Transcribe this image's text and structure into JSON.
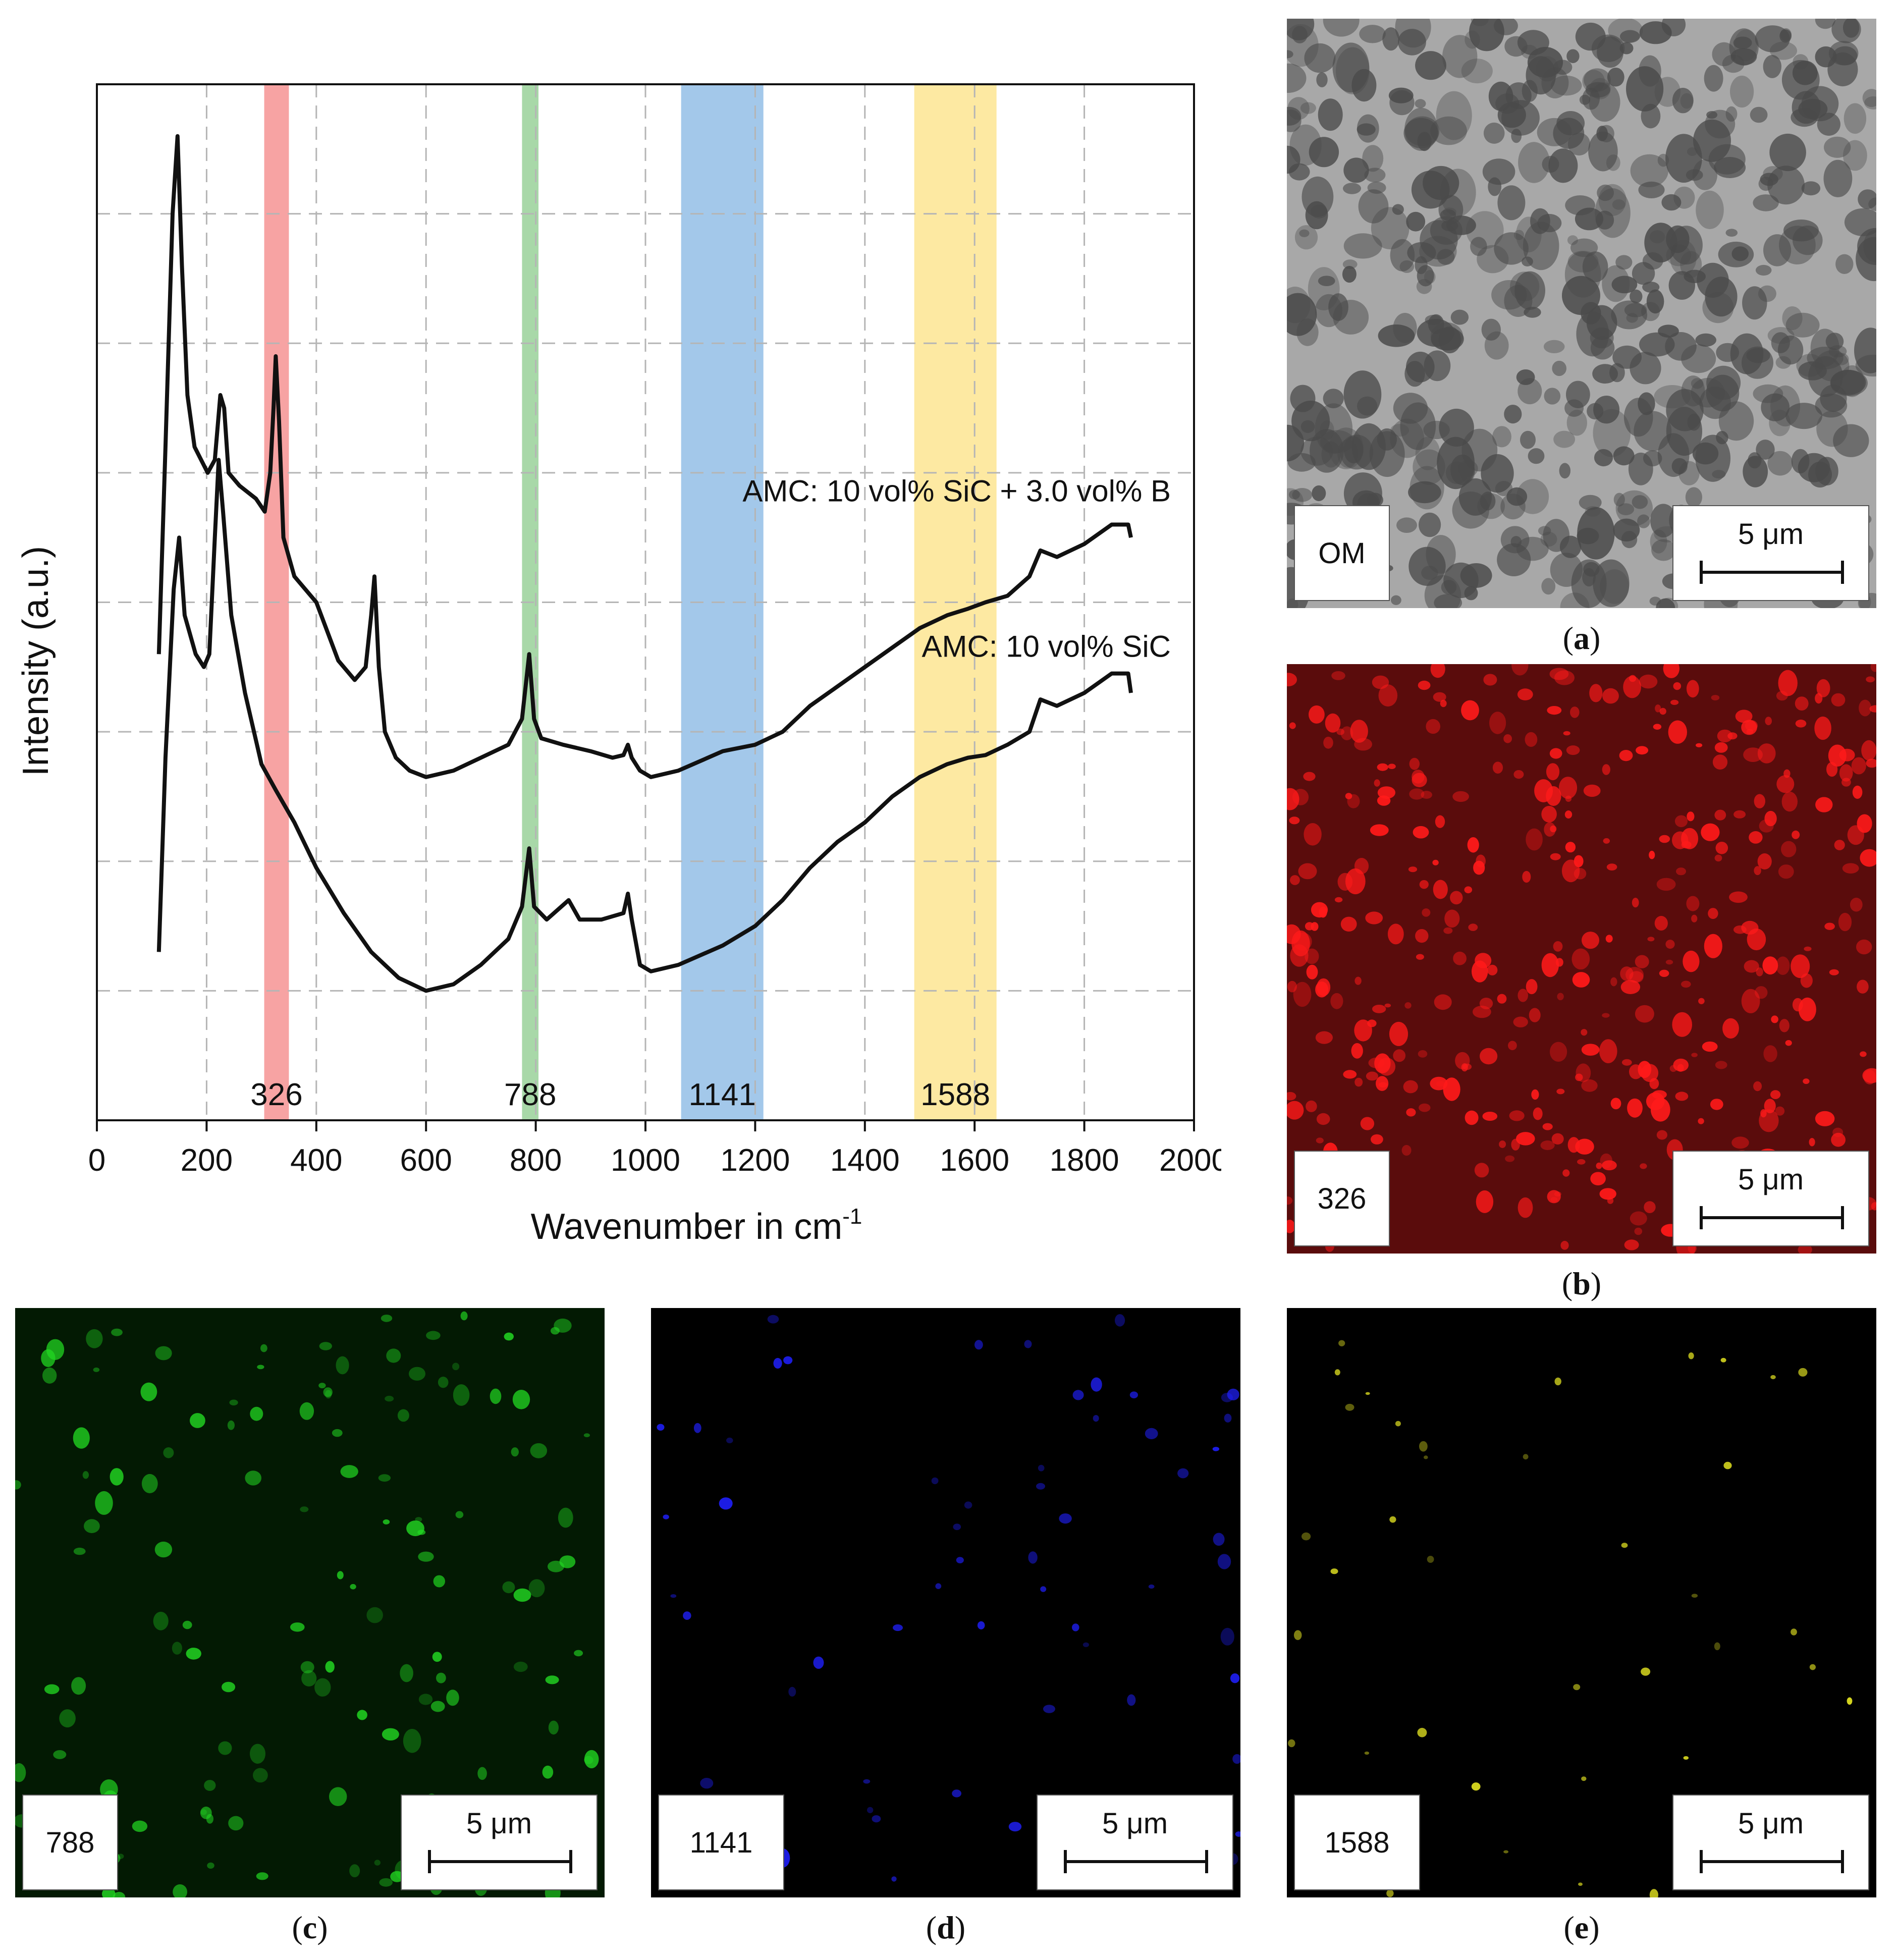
{
  "chart_data": {
    "type": "line",
    "xlabel": "Wavenumber in cm",
    "xlabel_sup": "-1",
    "ylabel": "Intensity (a.u.)",
    "xlim": [
      0,
      2000
    ],
    "xticks": [
      "0",
      "200",
      "400",
      "600",
      "800",
      "1000",
      "1200",
      "1400",
      "1600",
      "1800",
      "2000"
    ],
    "grid": true,
    "y_ticks_labeled": false,
    "bands": [
      {
        "label": "326",
        "from": 305,
        "to": 350,
        "color": "#f7a3a3"
      },
      {
        "label": "788",
        "from": 775,
        "to": 805,
        "color": "#a8d8a8"
      },
      {
        "label": "1141",
        "from": 1065,
        "to": 1215,
        "color": "#a3c8ea"
      },
      {
        "label": "1588",
        "from": 1490,
        "to": 1640,
        "color": "#fde9a2"
      }
    ],
    "series": [
      {
        "name": "AMC: 10 vol% SiC + 3.0 vol% B",
        "points": [
          [
            113,
            3.6
          ],
          [
            125,
            5.2
          ],
          [
            138,
            7.0
          ],
          [
            147,
            7.6
          ],
          [
            155,
            6.6
          ],
          [
            165,
            5.6
          ],
          [
            178,
            5.2
          ],
          [
            190,
            5.1
          ],
          [
            202,
            5.0
          ],
          [
            215,
            5.1
          ],
          [
            225,
            5.6
          ],
          [
            232,
            5.5
          ],
          [
            240,
            5.0
          ],
          [
            260,
            4.9
          ],
          [
            290,
            4.8
          ],
          [
            306,
            4.7
          ],
          [
            316,
            5.0
          ],
          [
            322,
            5.5
          ],
          [
            326,
            5.9
          ],
          [
            332,
            5.4
          ],
          [
            340,
            4.5
          ],
          [
            360,
            4.2
          ],
          [
            400,
            4.0
          ],
          [
            440,
            3.55
          ],
          [
            470,
            3.4
          ],
          [
            490,
            3.5
          ],
          [
            500,
            3.9
          ],
          [
            506,
            4.2
          ],
          [
            514,
            3.5
          ],
          [
            525,
            3.0
          ],
          [
            545,
            2.8
          ],
          [
            570,
            2.7
          ],
          [
            600,
            2.65
          ],
          [
            650,
            2.7
          ],
          [
            700,
            2.8
          ],
          [
            750,
            2.9
          ],
          [
            775,
            3.1
          ],
          [
            788,
            3.6
          ],
          [
            797,
            3.1
          ],
          [
            810,
            2.95
          ],
          [
            850,
            2.9
          ],
          [
            900,
            2.85
          ],
          [
            940,
            2.8
          ],
          [
            960,
            2.82
          ],
          [
            968,
            2.9
          ],
          [
            975,
            2.8
          ],
          [
            990,
            2.7
          ],
          [
            1010,
            2.65
          ],
          [
            1060,
            2.7
          ],
          [
            1141,
            2.85
          ],
          [
            1200,
            2.9
          ],
          [
            1250,
            3.0
          ],
          [
            1300,
            3.2
          ],
          [
            1350,
            3.35
          ],
          [
            1400,
            3.5
          ],
          [
            1450,
            3.65
          ],
          [
            1500,
            3.8
          ],
          [
            1550,
            3.9
          ],
          [
            1588,
            3.95
          ],
          [
            1620,
            4.0
          ],
          [
            1660,
            4.05
          ],
          [
            1700,
            4.2
          ],
          [
            1720,
            4.4
          ],
          [
            1750,
            4.35
          ],
          [
            1800,
            4.45
          ],
          [
            1850,
            4.6
          ],
          [
            1880,
            4.6
          ],
          [
            1885,
            4.5
          ]
        ]
      },
      {
        "name": "AMC: 10 vol% SiC",
        "points": [
          [
            113,
            1.3
          ],
          [
            125,
            2.8
          ],
          [
            140,
            4.1
          ],
          [
            150,
            4.5
          ],
          [
            160,
            3.9
          ],
          [
            180,
            3.6
          ],
          [
            195,
            3.5
          ],
          [
            205,
            3.6
          ],
          [
            215,
            4.5
          ],
          [
            222,
            5.1
          ],
          [
            230,
            4.7
          ],
          [
            245,
            3.9
          ],
          [
            270,
            3.3
          ],
          [
            300,
            2.75
          ],
          [
            326,
            2.55
          ],
          [
            360,
            2.3
          ],
          [
            400,
            1.95
          ],
          [
            450,
            1.6
          ],
          [
            500,
            1.3
          ],
          [
            550,
            1.1
          ],
          [
            600,
            1.0
          ],
          [
            650,
            1.05
          ],
          [
            700,
            1.2
          ],
          [
            750,
            1.4
          ],
          [
            775,
            1.65
          ],
          [
            788,
            2.1
          ],
          [
            797,
            1.65
          ],
          [
            820,
            1.55
          ],
          [
            860,
            1.7
          ],
          [
            880,
            1.55
          ],
          [
            920,
            1.55
          ],
          [
            960,
            1.6
          ],
          [
            968,
            1.75
          ],
          [
            975,
            1.55
          ],
          [
            990,
            1.2
          ],
          [
            1010,
            1.15
          ],
          [
            1060,
            1.2
          ],
          [
            1141,
            1.35
          ],
          [
            1200,
            1.5
          ],
          [
            1250,
            1.7
          ],
          [
            1300,
            1.95
          ],
          [
            1350,
            2.15
          ],
          [
            1400,
            2.3
          ],
          [
            1450,
            2.5
          ],
          [
            1500,
            2.65
          ],
          [
            1550,
            2.75
          ],
          [
            1588,
            2.8
          ],
          [
            1620,
            2.82
          ],
          [
            1660,
            2.9
          ],
          [
            1700,
            3.0
          ],
          [
            1720,
            3.25
          ],
          [
            1750,
            3.2
          ],
          [
            1800,
            3.3
          ],
          [
            1850,
            3.45
          ],
          [
            1880,
            3.45
          ],
          [
            1885,
            3.3
          ]
        ]
      }
    ]
  },
  "panels": {
    "a": {
      "tag": "OM",
      "scale": "5 μm",
      "caption_letter": "a",
      "background": "#a8a8a8",
      "speckle": "#4a4a4a"
    },
    "b": {
      "tag": "326",
      "scale": "5 μm",
      "caption_letter": "b",
      "background": "#5a0c0c",
      "speckle": "#ff1a1a"
    },
    "c": {
      "tag": "788",
      "scale": "5 μm",
      "caption_letter": "c",
      "background": "#031a03",
      "speckle": "#22d822"
    },
    "d": {
      "tag": "1141",
      "scale": "5 μm",
      "caption_letter": "d",
      "background": "#000000",
      "speckle": "#2020ff"
    },
    "e": {
      "tag": "1588",
      "scale": "5 μm",
      "caption_letter": "e",
      "background": "#000000",
      "speckle": "#e0e020"
    }
  }
}
